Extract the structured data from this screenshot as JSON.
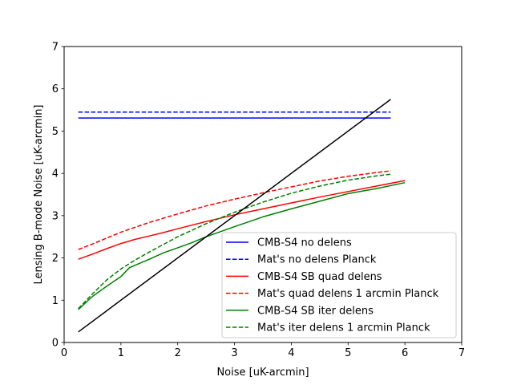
{
  "chart_data": {
    "type": "line",
    "title": "",
    "xlabel": "Noise [uK-arcmin]",
    "ylabel": "Lensing B-mode Noise [uK-arcmin]",
    "xlim": [
      0,
      7
    ],
    "ylim": [
      0,
      7
    ],
    "xticks": [
      0,
      1,
      2,
      3,
      4,
      5,
      6,
      7
    ],
    "yticks": [
      0,
      1,
      2,
      3,
      4,
      5,
      6,
      7
    ],
    "grid": false,
    "legend_position": "lower-right",
    "series": [
      {
        "name": "CMB-S4 no delens",
        "color": "#0000ff",
        "style": "solid",
        "in_legend": true,
        "x": [
          0.25,
          5.75
        ],
        "y": [
          5.31,
          5.31
        ]
      },
      {
        "name": "Mat's no delens Planck",
        "color": "#0000ff",
        "style": "dashed",
        "in_legend": true,
        "x": [
          0.25,
          5.75
        ],
        "y": [
          5.45,
          5.45
        ]
      },
      {
        "name": "CMB-S4 SB quad delens",
        "color": "#ff0000",
        "style": "solid",
        "in_legend": true,
        "x": [
          0.25,
          0.5,
          0.75,
          1.0,
          1.25,
          1.5,
          1.75,
          2.0,
          2.5,
          3.0,
          3.5,
          4.0,
          4.5,
          5.0,
          5.5,
          6.0
        ],
        "y": [
          1.97,
          2.09,
          2.22,
          2.34,
          2.44,
          2.52,
          2.6,
          2.69,
          2.86,
          3.02,
          3.16,
          3.3,
          3.44,
          3.57,
          3.7,
          3.83
        ]
      },
      {
        "name": "Mat's quad delens 1 arcmin Planck",
        "color": "#ff0000",
        "style": "dashed",
        "in_legend": true,
        "x": [
          0.25,
          0.5,
          0.75,
          1.0,
          1.5,
          2.0,
          2.5,
          3.0,
          3.5,
          4.0,
          4.5,
          5.0,
          5.5,
          5.75
        ],
        "y": [
          2.2,
          2.33,
          2.47,
          2.61,
          2.84,
          3.04,
          3.23,
          3.39,
          3.54,
          3.68,
          3.82,
          3.93,
          4.02,
          4.06
        ]
      },
      {
        "name": "CMB-S4 SB iter delens",
        "color": "#008000",
        "style": "solid",
        "in_legend": true,
        "x": [
          0.25,
          0.5,
          0.75,
          1.0,
          1.15,
          1.5,
          1.75,
          2.0,
          2.25,
          2.5,
          3.0,
          3.5,
          4.0,
          4.5,
          5.0,
          5.5,
          6.0
        ],
        "y": [
          0.78,
          1.09,
          1.33,
          1.56,
          1.77,
          1.97,
          2.12,
          2.24,
          2.36,
          2.5,
          2.74,
          2.97,
          3.16,
          3.34,
          3.52,
          3.64,
          3.78
        ]
      },
      {
        "name": "Mat's iter delens 1 arcmin Planck",
        "color": "#008000",
        "style": "dashed",
        "in_legend": true,
        "x": [
          0.25,
          0.5,
          0.75,
          1.0,
          1.25,
          1.5,
          2.0,
          2.5,
          3.0,
          3.5,
          4.0,
          4.5,
          5.0,
          5.5,
          5.75
        ],
        "y": [
          0.8,
          1.15,
          1.48,
          1.74,
          1.95,
          2.14,
          2.5,
          2.81,
          3.08,
          3.32,
          3.53,
          3.7,
          3.84,
          3.94,
          3.98
        ]
      },
      {
        "name": "",
        "color": "#000000",
        "style": "solid",
        "in_legend": false,
        "x": [
          0.25,
          5.75
        ],
        "y": [
          0.25,
          5.75
        ]
      }
    ]
  }
}
